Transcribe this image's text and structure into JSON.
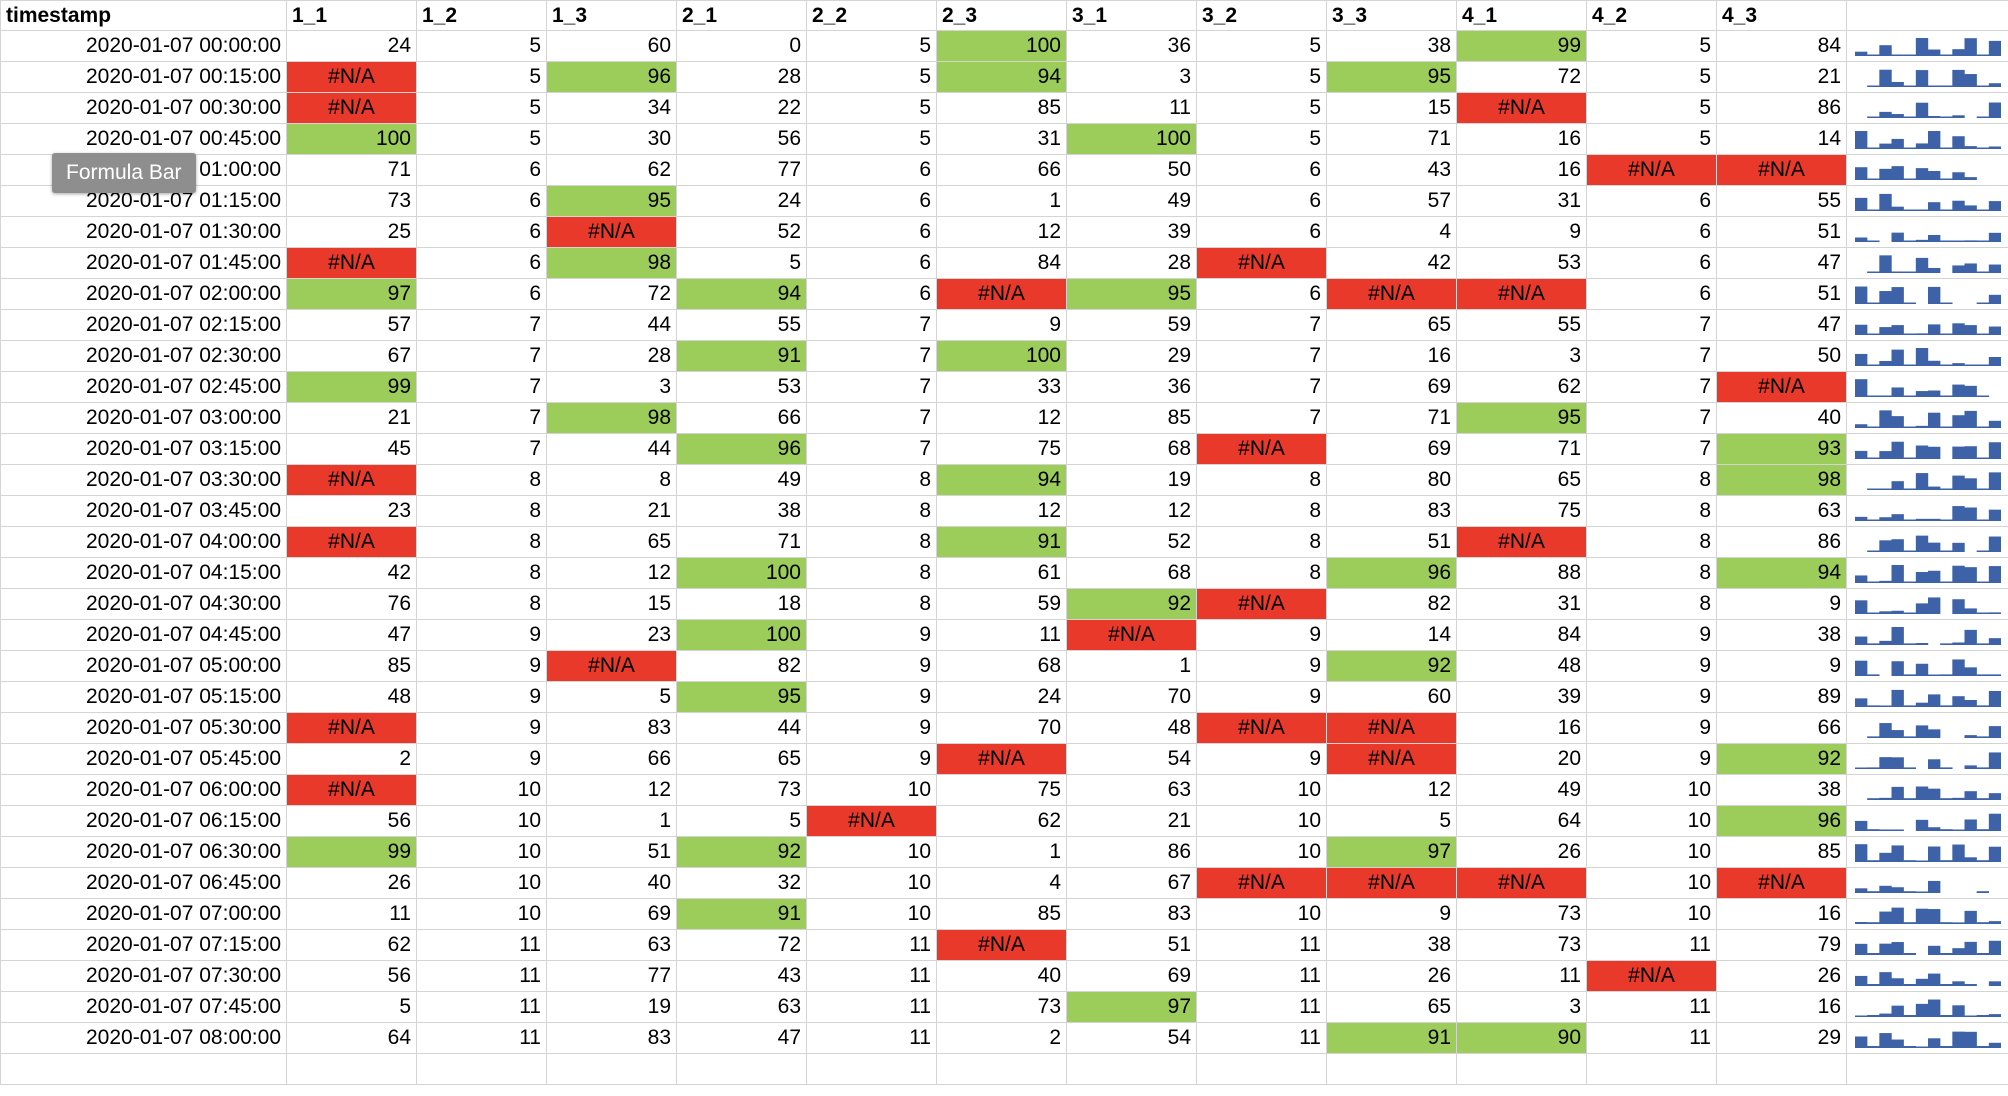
{
  "colors": {
    "na": "#e8392b",
    "high": "#9ccc5a",
    "spark": "#3d62a8",
    "grid": "#d4d4d4"
  },
  "tooltip": "Formula Bar",
  "columns": [
    "timestamp",
    "1_1",
    "1_2",
    "1_3",
    "2_1",
    "2_2",
    "2_3",
    "3_1",
    "3_2",
    "3_3",
    "4_1",
    "4_2",
    "4_3",
    ""
  ],
  "rows": [
    [
      "2020-01-07 00:00:00",
      "24",
      "5",
      "60",
      "0",
      "5",
      "100",
      "36",
      "5",
      "38",
      "99",
      "5",
      "84"
    ],
    [
      "2020-01-07 00:15:00",
      "#N/A",
      "5",
      "96",
      "28",
      "5",
      "94",
      "3",
      "5",
      "95",
      "72",
      "5",
      "21"
    ],
    [
      "2020-01-07 00:30:00",
      "#N/A",
      "5",
      "34",
      "22",
      "5",
      "85",
      "11",
      "5",
      "15",
      "#N/A",
      "5",
      "86"
    ],
    [
      "2020-01-07 00:45:00",
      "100",
      "5",
      "30",
      "56",
      "5",
      "31",
      "100",
      "5",
      "71",
      "16",
      "5",
      "14"
    ],
    [
      "2020-01-07 01:00:00",
      "71",
      "6",
      "62",
      "77",
      "6",
      "66",
      "50",
      "6",
      "43",
      "16",
      "#N/A",
      "#N/A"
    ],
    [
      "2020-01-07 01:15:00",
      "73",
      "6",
      "95",
      "24",
      "6",
      "1",
      "49",
      "6",
      "57",
      "31",
      "6",
      "55"
    ],
    [
      "2020-01-07 01:30:00",
      "25",
      "6",
      "#N/A",
      "52",
      "6",
      "12",
      "39",
      "6",
      "4",
      "9",
      "6",
      "51"
    ],
    [
      "2020-01-07 01:45:00",
      "#N/A",
      "6",
      "98",
      "5",
      "6",
      "84",
      "28",
      "#N/A",
      "42",
      "53",
      "6",
      "47"
    ],
    [
      "2020-01-07 02:00:00",
      "97",
      "6",
      "72",
      "94",
      "6",
      "#N/A",
      "95",
      "6",
      "#N/A",
      "#N/A",
      "6",
      "51"
    ],
    [
      "2020-01-07 02:15:00",
      "57",
      "7",
      "44",
      "55",
      "7",
      "9",
      "59",
      "7",
      "65",
      "55",
      "7",
      "47"
    ],
    [
      "2020-01-07 02:30:00",
      "67",
      "7",
      "28",
      "91",
      "7",
      "100",
      "29",
      "7",
      "16",
      "3",
      "7",
      "50"
    ],
    [
      "2020-01-07 02:45:00",
      "99",
      "7",
      "3",
      "53",
      "7",
      "33",
      "36",
      "7",
      "69",
      "62",
      "7",
      "#N/A"
    ],
    [
      "2020-01-07 03:00:00",
      "21",
      "7",
      "98",
      "66",
      "7",
      "12",
      "85",
      "7",
      "71",
      "95",
      "7",
      "40"
    ],
    [
      "2020-01-07 03:15:00",
      "45",
      "7",
      "44",
      "96",
      "7",
      "75",
      "68",
      "#N/A",
      "69",
      "71",
      "7",
      "93"
    ],
    [
      "2020-01-07 03:30:00",
      "#N/A",
      "8",
      "8",
      "49",
      "8",
      "94",
      "19",
      "8",
      "80",
      "65",
      "8",
      "98"
    ],
    [
      "2020-01-07 03:45:00",
      "23",
      "8",
      "21",
      "38",
      "8",
      "12",
      "12",
      "8",
      "83",
      "75",
      "8",
      "63"
    ],
    [
      "2020-01-07 04:00:00",
      "#N/A",
      "8",
      "65",
      "71",
      "8",
      "91",
      "52",
      "8",
      "51",
      "#N/A",
      "8",
      "86"
    ],
    [
      "2020-01-07 04:15:00",
      "42",
      "8",
      "12",
      "100",
      "8",
      "61",
      "68",
      "8",
      "96",
      "88",
      "8",
      "94"
    ],
    [
      "2020-01-07 04:30:00",
      "76",
      "8",
      "15",
      "18",
      "8",
      "59",
      "92",
      "#N/A",
      "82",
      "31",
      "8",
      "9"
    ],
    [
      "2020-01-07 04:45:00",
      "47",
      "9",
      "23",
      "100",
      "9",
      "11",
      "#N/A",
      "9",
      "14",
      "84",
      "9",
      "38"
    ],
    [
      "2020-01-07 05:00:00",
      "85",
      "9",
      "#N/A",
      "82",
      "9",
      "68",
      "1",
      "9",
      "92",
      "48",
      "9",
      "9"
    ],
    [
      "2020-01-07 05:15:00",
      "48",
      "9",
      "5",
      "95",
      "9",
      "24",
      "70",
      "9",
      "60",
      "39",
      "9",
      "89"
    ],
    [
      "2020-01-07 05:30:00",
      "#N/A",
      "9",
      "83",
      "44",
      "9",
      "70",
      "48",
      "#N/A",
      "#N/A",
      "16",
      "9",
      "66"
    ],
    [
      "2020-01-07 05:45:00",
      "2",
      "9",
      "66",
      "65",
      "9",
      "#N/A",
      "54",
      "9",
      "#N/A",
      "20",
      "9",
      "92"
    ],
    [
      "2020-01-07 06:00:00",
      "#N/A",
      "10",
      "12",
      "73",
      "10",
      "75",
      "63",
      "10",
      "12",
      "49",
      "10",
      "38"
    ],
    [
      "2020-01-07 06:15:00",
      "56",
      "10",
      "1",
      "5",
      "#N/A",
      "62",
      "21",
      "10",
      "5",
      "64",
      "10",
      "96"
    ],
    [
      "2020-01-07 06:30:00",
      "99",
      "10",
      "51",
      "92",
      "10",
      "1",
      "86",
      "10",
      "97",
      "26",
      "10",
      "85"
    ],
    [
      "2020-01-07 06:45:00",
      "26",
      "10",
      "40",
      "32",
      "10",
      "4",
      "67",
      "#N/A",
      "#N/A",
      "#N/A",
      "10",
      "#N/A"
    ],
    [
      "2020-01-07 07:00:00",
      "11",
      "10",
      "69",
      "91",
      "10",
      "85",
      "83",
      "10",
      "9",
      "73",
      "10",
      "16"
    ],
    [
      "2020-01-07 07:15:00",
      "62",
      "11",
      "63",
      "72",
      "11",
      "#N/A",
      "51",
      "11",
      "38",
      "73",
      "11",
      "79"
    ],
    [
      "2020-01-07 07:30:00",
      "56",
      "11",
      "77",
      "43",
      "11",
      "40",
      "69",
      "11",
      "26",
      "11",
      "#N/A",
      "26"
    ],
    [
      "2020-01-07 07:45:00",
      "5",
      "11",
      "19",
      "63",
      "11",
      "73",
      "97",
      "11",
      "65",
      "3",
      "11",
      "16"
    ],
    [
      "2020-01-07 08:00:00",
      "64",
      "11",
      "83",
      "47",
      "11",
      "2",
      "54",
      "11",
      "91",
      "90",
      "11",
      "29"
    ],
    [
      "",
      "",
      "",
      "",
      "",
      "",
      "",
      "",
      "",
      "",
      "",
      "",
      ""
    ]
  ]
}
